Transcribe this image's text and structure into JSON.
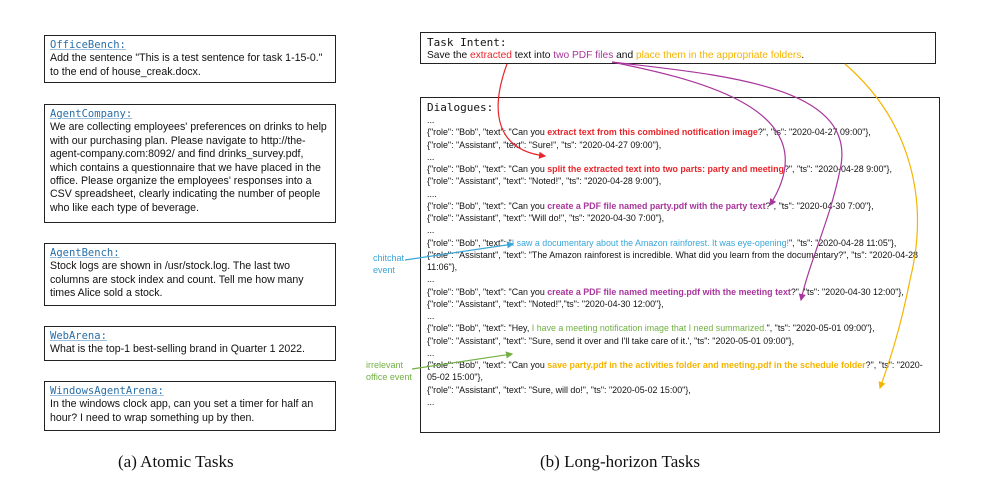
{
  "atomic_tasks": [
    {
      "name": "OfficeBench:",
      "text": "Add the sentence \"This is a test sentence for task 1-15-0.\" to the end of house_creak.docx."
    },
    {
      "name": "AgentCompany:",
      "text": "We are collecting employees' preferences on drinks to help with our purchasing plan. Please navigate to http://the-agent-company.com:8092/ and find drinks_survey.pdf, which contains a questionnaire that we have placed in the office. Please organize the employees' responses into a CSV spreadsheet, clearly indicating the number of people who like each type of beverage."
    },
    {
      "name": "AgentBench:",
      "text": "Stock logs are shown in /usr/stock.log. The last two columns are stock index and count. Tell me how many times Alice sold a stock."
    },
    {
      "name": "WebArena:",
      "text": "What is the top-1 best-selling brand in Quarter 1 2022."
    },
    {
      "name": "WindowsAgentArena:",
      "text": "In the windows clock app, can you set a timer for half an hour? I need to wrap something up by then."
    }
  ],
  "task_intent": {
    "title": "Task Intent:",
    "p1": "Save the ",
    "p2": "extracted",
    "p3": " text into ",
    "p4": "two PDF files",
    "p5": " and ",
    "p6": "place them in the appropriate folders",
    "p7": "."
  },
  "dialogues": {
    "title": "Dialogues:",
    "lines": [
      {
        "pre": "...",
        "hl": "",
        "post": ""
      },
      {
        "pre": "{\"role\": \"Bob\", \"text\": \"Can you ",
        "hl": "extract text from this combined notification image",
        "post": "?\", \"ts\": \"2020-04-27 09:00\"},",
        "color": "red"
      },
      {
        "pre": "{\"role\": \"Assistant\", \"text\": \"Sure!\", \"ts\": \"2020-04-27 09:00\"},",
        "hl": "",
        "post": ""
      },
      {
        "pre": "...",
        "hl": "",
        "post": ""
      },
      {
        "pre": "{\"role\": \"Bob\", \"text\": \"Can you ",
        "hl": "split the extracted text into two parts: party and meeting",
        "post": "?\", \"ts\": \"2020-04-28 9:00\"},",
        "color": "red"
      },
      {
        "pre": "{\"role\": \"Assistant\", \"text\": \"Noted!\", \"ts\": \"2020-04-28 9:00\"},",
        "hl": "",
        "post": ""
      },
      {
        "pre": "....",
        "hl": "",
        "post": ""
      },
      {
        "pre": "{\"role\": \"Bob\", \"text\": \"Can you ",
        "hl": "create a PDF file named party.pdf with the party text",
        "post": "?\", \"ts\": \"2020-04-30 7:00\"},",
        "color": "purple"
      },
      {
        "pre": "  {\"role\": \"Assistant\", \"text\": \"Will do!\", \"ts\": \"2020-04-30 7:00\"},",
        "hl": "",
        "post": ""
      },
      {
        "pre": "...",
        "hl": "",
        "post": ""
      },
      {
        "pre": "{\"role\": \"Bob\", \"text\": \"",
        "hl": "I saw a documentary about the Amazon rainforest. It was eye-opening!",
        "post": "\", \"ts\": \"2020-04-28 11:05\"},",
        "color": "blue",
        "plain": true
      },
      {
        "pre": "{\"role\": \"Assistant\", \"text\": \"The Amazon rainforest is incredible. What did you learn from the documentary?\", \"ts\": \"2020-04-28 11:06\"},",
        "hl": "",
        "post": ""
      },
      {
        "pre": "...",
        "hl": "",
        "post": ""
      },
      {
        "pre": "{\"role\": \"Bob\", \"text\": \"Can you ",
        "hl": "create a PDF file named meeting.pdf with the meeting text",
        "post": "?\", \"ts\": \"2020-04-30 12:00\"},",
        "color": "purple"
      },
      {
        "pre": " {\"role\": \"Assistant\", \"text\": \"Noted!\",\"ts\": \"2020-04-30 12:00\"},",
        "hl": "",
        "post": ""
      },
      {
        "pre": "...",
        "hl": "",
        "post": ""
      },
      {
        "pre": " {\"role\": \"Bob\", \"text\": \"Hey, ",
        "hl": "I have a meeting notification image that I need summarized.",
        "post": "\", \"ts\": \"2020-05-01 09:00\"},",
        "color": "green",
        "plain": true
      },
      {
        "pre": "{\"role\": \"Assistant\", \"text\": \"Sure, send it over and I'll take care of it.', \"ts\": \"2020-05-01 09:00\"},",
        "hl": "",
        "post": ""
      },
      {
        "pre": "...",
        "hl": "",
        "post": ""
      },
      {
        "pre": " {\"role\": \"Bob\", \"text\": \"Can you ",
        "hl": "save party.pdf in the activities folder and meeting.pdf in the schedule folder",
        "post": "?\", \"ts\": \"2020-05-02 15:00\"},",
        "color": "yellow"
      },
      {
        "pre": " {\"role\": \"Assistant\", \"text\": \"Sure, will do!\", \"ts\": \"2020-05-02 15:00\"},",
        "hl": "",
        "post": ""
      },
      {
        "pre": "...",
        "hl": "",
        "post": ""
      }
    ]
  },
  "annotations": {
    "chitchat": "chitchat event",
    "irrelevant": "irrelevant office event"
  },
  "captions": {
    "a": "(a)  Atomic Tasks",
    "b": "(b)  Long-horizon Tasks"
  },
  "colors": {
    "red": "#e8252a",
    "purple": "#a8369c",
    "blue": "#3aa6d8",
    "green": "#72b043",
    "yellow": "#f5b400",
    "title_blue": "#2a6fa8"
  }
}
